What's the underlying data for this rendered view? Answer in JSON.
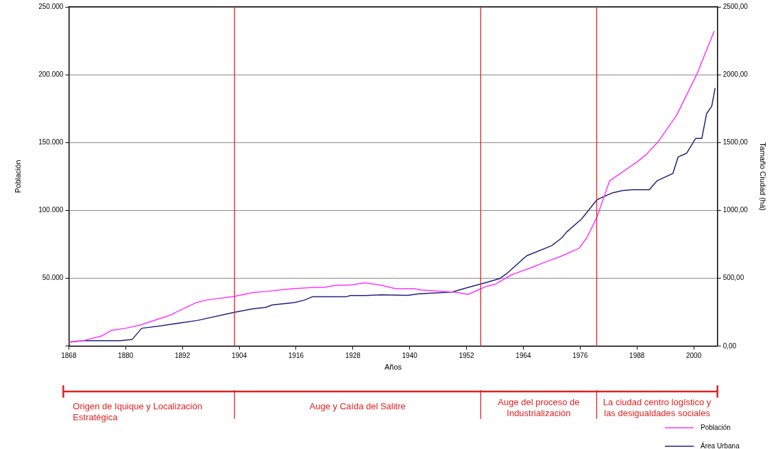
{
  "chart_data": {
    "type": "line",
    "xlabel": "Años",
    "ylabel": "Población",
    "y2label": "Tamaño Ciudad (há)",
    "xlim": [
      1868,
      2005
    ],
    "xticks": [
      1868,
      1880,
      1892,
      1904,
      1916,
      1928,
      1940,
      1952,
      1964,
      1976,
      1988,
      2000
    ],
    "ylim": [
      0,
      250000
    ],
    "yticks": [
      {
        "value": 0,
        "label": null
      },
      {
        "value": 50000,
        "label": "50.000"
      },
      {
        "value": 100000,
        "label": "100.000"
      },
      {
        "value": 150000,
        "label": "150.000"
      },
      {
        "value": 200000,
        "label": "200.000"
      },
      {
        "value": 250000,
        "label": "250.000"
      }
    ],
    "y2lim": [
      0,
      2500
    ],
    "y2ticks": [
      {
        "value": 0,
        "label": "0,00"
      },
      {
        "value": 500,
        "label": "500,00"
      },
      {
        "value": 1000,
        "label": "1000,00"
      },
      {
        "value": 1500,
        "label": "1500,00"
      },
      {
        "value": 2000,
        "label": "2000,00"
      },
      {
        "value": 2500,
        "label": "2500,00"
      }
    ],
    "grid": "y",
    "legend": "bottom right",
    "marker": "none",
    "line_style": "solid",
    "series": [
      {
        "name": "Población",
        "color": "#ff33ff",
        "x": [
          1868,
          1871,
          1875,
          1877,
          1880,
          1883,
          1889,
          1895,
          1897,
          1903,
          1907,
          1909.5,
          1915,
          1920,
          1922,
          1924.5,
          1927.5,
          1930.5,
          1934,
          1937,
          1941,
          1942.5,
          1946,
          1950,
          1952.3,
          1954.4,
          1956.3,
          1958,
          1961.5,
          1965.3,
          1969.4,
          1971.6,
          1975.8,
          1977.4,
          1979.5,
          1982.2,
          1988,
          1990,
          1992.5,
          1996.4,
          2000.6,
          2004.3
        ],
        "values": [
          3000,
          4000,
          7600,
          11700,
          13200,
          15500,
          22300,
          32200,
          34000,
          36700,
          39600,
          40300,
          42200,
          43400,
          43400,
          44900,
          45000,
          46700,
          44900,
          42400,
          42400,
          41400,
          40600,
          39600,
          38100,
          41400,
          44200,
          45500,
          52600,
          57400,
          63000,
          65700,
          72200,
          79800,
          94600,
          121700,
          135700,
          141300,
          150700,
          170300,
          200000,
          232000
        ]
      },
      {
        "name": "Área Urbana",
        "color": "#1f1f7a",
        "axis": "y2",
        "x": [
          1868.3,
          1871,
          1878.8,
          1881.4,
          1883.4,
          1887.5,
          1891.6,
          1895.2,
          1903,
          1907,
          1909.5,
          1911,
          1915.7,
          1917.8,
          1919.4,
          1926.5,
          1927.5,
          1930.6,
          1934,
          1939.6,
          1942,
          1948.9,
          1952.3,
          1956.3,
          1959,
          1960.5,
          1964.7,
          1970,
          1972.1,
          1973.2,
          1976.3,
          1979.5,
          1980.6,
          1982.7,
          1984.9,
          1986.9,
          1990.6,
          1992.2,
          1995.6,
          1996.7,
          1998.5,
          2000.4,
          2001.7,
          2002.7,
          2003.8,
          2004.5
        ],
        "values": [
          30,
          40,
          40,
          50,
          132,
          150,
          172,
          190,
          250,
          276,
          285,
          304,
          322,
          340,
          364,
          364,
          373,
          373,
          378,
          375,
          386,
          399,
          433,
          470,
          498,
          535,
          666,
          741,
          797,
          843,
          937,
          1077,
          1096,
          1128,
          1146,
          1152,
          1152,
          1217,
          1273,
          1394,
          1422,
          1531,
          1531,
          1712,
          1768,
          1899
        ]
      }
    ],
    "ref_lines": [
      {
        "axis": "x",
        "value": 1903,
        "color": "#e02020"
      },
      {
        "axis": "x",
        "value": 1955,
        "color": "#e02020"
      },
      {
        "axis": "x",
        "value": 1979.5,
        "color": "#e02020"
      }
    ],
    "annotations": [
      "Origen de Iquique y Localización Estratégica",
      "Auge y Caída del Salitre",
      "Auge del proceso de Industrialización",
      "La ciudad centro logístico y las desigualdades sociales"
    ]
  }
}
